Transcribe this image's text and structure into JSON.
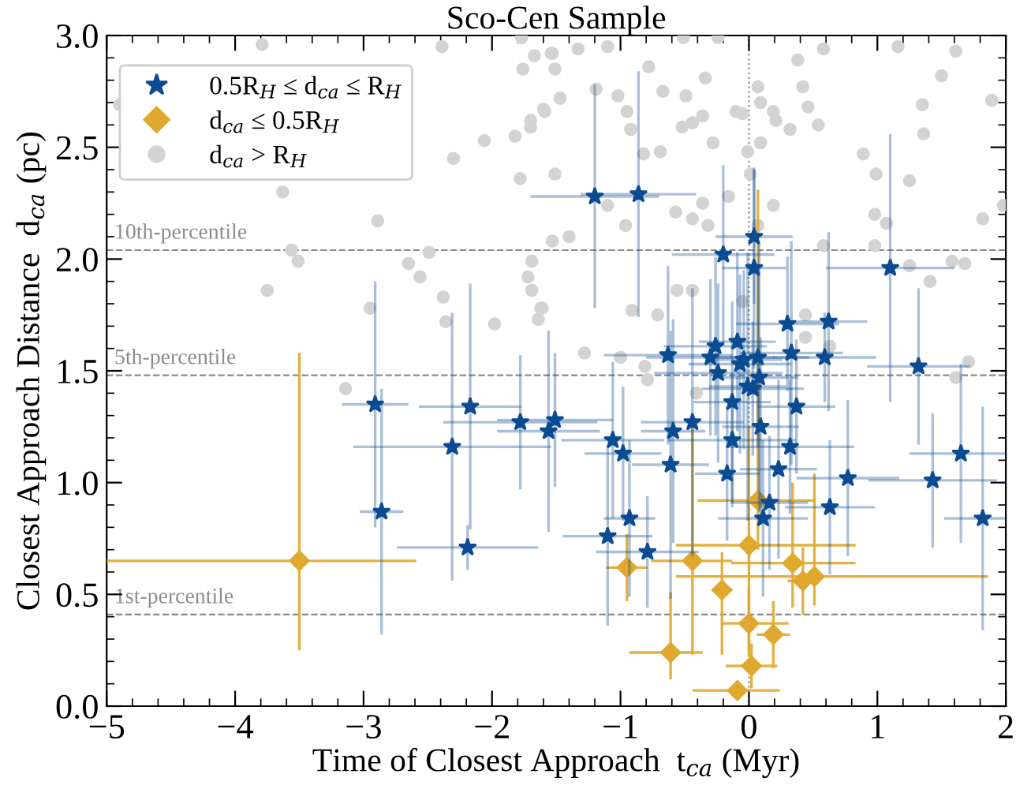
{
  "chart_data": {
    "type": "scatter",
    "title": "Sco-Cen Sample",
    "xlabel": "Time of Closest Approach  t$_{ca}$ (Myr)",
    "ylabel": "Closest Approach Distance  d$_{ca}$ (pc)",
    "xlim": [
      -5,
      2
    ],
    "xticks": [
      {
        "value": -5,
        "label": "−5"
      },
      {
        "value": -4,
        "label": "−4"
      },
      {
        "value": -3,
        "label": "−3"
      },
      {
        "value": -2,
        "label": "−2"
      },
      {
        "value": -1,
        "label": "−1"
      },
      0,
      1,
      2
    ],
    "ylim": [
      0,
      3
    ],
    "yticks": [
      {
        "value": 0,
        "label": "0.0"
      },
      0.5,
      {
        "value": 1,
        "label": "1.0"
      },
      1.5,
      {
        "value": 2,
        "label": "2.0"
      },
      2.5,
      {
        "value": 3,
        "label": "3.0"
      }
    ],
    "grid": false,
    "legend": "top left",
    "ref_lines": [
      {
        "axis": "y",
        "value": 2.04,
        "label": "10th-percentile",
        "color": "#8c8c8c",
        "line_style": "dashed"
      },
      {
        "axis": "y",
        "value": 1.48,
        "label": "5th-percentile",
        "color": "#8c8c8c",
        "line_style": "dashed"
      },
      {
        "axis": "y",
        "value": 0.41,
        "label": "1st-percentile",
        "color": "#8c8c8c",
        "line_style": "dashed"
      },
      {
        "axis": "x",
        "value": 0,
        "label": null,
        "color": "#8c8c8c",
        "line_style": "dotted"
      }
    ],
    "series": [
      {
        "name": "0.5R$_{H}$ ≤ d$_{ca}$ ≤ R$_{H}$",
        "color": "#0b4b91",
        "marker": "star",
        "x": [
          -2.91,
          -2.86,
          -2.17,
          -2.31,
          -2.19,
          -1.78,
          -1.56,
          -1.51,
          -1.06,
          -0.98,
          -0.93,
          -1.1,
          -0.79,
          -0.59,
          -0.61,
          -0.44,
          -0.13,
          -0.13,
          -0.17,
          -0.24,
          -0.07,
          -0.04,
          0.08,
          -0.01,
          0.03,
          0.09,
          0.37,
          0.32,
          0.23,
          0.16,
          0.11,
          0.77,
          0.63,
          1.32,
          1.43,
          1.65,
          1.82,
          -1.2,
          -0.86,
          0.04,
          -0.2,
          0.04,
          1.1,
          0.3,
          0.62,
          -0.26,
          -0.09,
          -0.63,
          -0.3,
          0.07,
          0.33,
          0.59
        ],
        "values": [
          1.35,
          0.87,
          1.34,
          1.16,
          0.71,
          1.27,
          1.23,
          1.28,
          1.19,
          1.13,
          0.84,
          0.76,
          0.69,
          1.23,
          1.08,
          1.27,
          1.36,
          1.19,
          1.04,
          1.49,
          1.53,
          1.55,
          1.47,
          1.43,
          1.42,
          1.25,
          1.34,
          1.16,
          1.06,
          0.91,
          0.84,
          1.02,
          0.89,
          1.52,
          1.01,
          1.13,
          0.84,
          2.28,
          2.29,
          2.1,
          2.02,
          1.96,
          1.96,
          1.71,
          1.72,
          1.61,
          1.63,
          1.57,
          1.56,
          1.56,
          1.58,
          1.56
        ],
        "xerrors": [
          0.26,
          0.17,
          0.4,
          0.77,
          0.55,
          0.6,
          0.4,
          0.45,
          0.4,
          0.3,
          0.2,
          0.35,
          0.4,
          0.25,
          0.3,
          0.4,
          0.3,
          0.5,
          0.25,
          0.5,
          0.4,
          0.3,
          0.3,
          0.3,
          0.4,
          0.3,
          0.3,
          0.5,
          0.3,
          0.3,
          0.35,
          0.4,
          0.35,
          0.4,
          0.5,
          0.4,
          0.3,
          0.5,
          0.45,
          0.3,
          0.4,
          0.25,
          0.5,
          0.4,
          0.3,
          0.4,
          0.3,
          0.5,
          0.5,
          0.4,
          0.4,
          0.4
        ],
        "errors": [
          0.55,
          0.55,
          0.55,
          0.6,
          0.1,
          0.3,
          0.45,
          0.3,
          0.35,
          0.3,
          0.35,
          0.4,
          0.25,
          0.5,
          0.6,
          0.6,
          0.45,
          0.3,
          0.3,
          0.4,
          0.4,
          0.4,
          0.6,
          0.6,
          0.3,
          0.4,
          0.3,
          0.3,
          0.4,
          0.3,
          0.35,
          0.35,
          0.3,
          0.35,
          0.3,
          0.4,
          0.5,
          0.5,
          0.55,
          0.3,
          0.4,
          0.45,
          0.6,
          0.3,
          0.4,
          0.4,
          0.4,
          0.4,
          0.35,
          0.4,
          0.5,
          0.2
        ]
      },
      {
        "name": "d$_{ca}$ ≤ 0.5R$_{H}$",
        "color": "#e0a82e",
        "marker": "diamond",
        "x": [
          -3.5,
          -0.95,
          -0.44,
          -0.61,
          -0.21,
          0.0,
          0.07,
          0.0,
          0.19,
          0.02,
          -0.09,
          0.34,
          0.42,
          0.51
        ],
        "values": [
          0.65,
          0.62,
          0.65,
          0.24,
          0.52,
          0.72,
          0.92,
          0.37,
          0.32,
          0.18,
          0.07,
          0.64,
          0.56,
          0.58
        ],
        "xerrors": [
          [
            -5.0,
            -2.59
          ],
          [
            -1.11,
            -0.79
          ],
          [
            -0.76,
            -0.13
          ],
          [
            -0.93,
            -0.36
          ],
          [
            -0.29,
            -0.13
          ],
          [
            -0.57,
            0.83
          ],
          [
            -0.4,
            0.52
          ],
          [
            -0.21,
            0.31
          ],
          [
            0.06,
            0.32
          ],
          [
            -0.18,
            0.22
          ],
          [
            -0.44,
            0.24
          ],
          [
            -0.14,
            0.83
          ],
          [
            0.3,
            0.54
          ],
          [
            -0.57,
            1.86
          ]
        ],
        "errors": [
          [
            0.25,
            1.58
          ],
          [
            0.47,
            0.77
          ],
          [
            0.23,
            1.26
          ],
          [
            0.12,
            0.51
          ],
          [
            0.23,
            0.69
          ],
          [
            0.25,
            1.25
          ],
          [
            0.7,
            2.31
          ],
          [
            0.22,
            0.52
          ],
          [
            0.17,
            0.47
          ],
          [
            0.08,
            0.28
          ],
          [
            0.03,
            0.11
          ],
          [
            0.44,
            1.0
          ],
          [
            0.41,
            0.71
          ],
          [
            0.45,
            1.04
          ]
        ]
      },
      {
        "name": "d$_{ca}$ > R$_{H}$",
        "color": "#d3d3d3",
        "marker": "circle",
        "x": [
          -3.79,
          -2.39,
          -1.77,
          -1.67,
          -1.76,
          -1.51,
          -1.54,
          -1.47,
          -1.59,
          -1.7,
          -1.7,
          -2.06,
          -1.82,
          -2.3,
          -1.78,
          -1.51,
          -3.63,
          -2.89,
          -3.56,
          -3.51,
          -3.75,
          -2.65,
          -2.56,
          -2.49,
          -2.38,
          -2.95,
          -2.36,
          -1.98,
          -1.69,
          -1.72,
          -1.69,
          -1.61,
          -1.64,
          -1.53,
          -4.9,
          -3.14,
          -1.53,
          -1.33,
          -1.1,
          -1.19,
          -1.47,
          -1.6,
          -0.95,
          -1.02,
          -0.92,
          -0.82,
          -0.69,
          -0.96,
          -1.1,
          -1.4,
          -1.62,
          -1.28,
          -0.91,
          -0.71,
          -0.56,
          -0.44,
          -0.78,
          -0.67,
          -0.49,
          -0.34,
          -0.24,
          -0.51,
          -0.36,
          -0.44,
          -0.28,
          -0.52,
          -0.05,
          -0.1,
          0.09,
          0.19,
          0.21,
          -0.01,
          0.01,
          0.09,
          0.07,
          0.42,
          0.32,
          0.54,
          0.46,
          0.58,
          0.38,
          0.89,
          0.99,
          1.25,
          1.16,
          1.35,
          1.36,
          1.5,
          1.61,
          1.89,
          1.98,
          1.82,
          0.98,
          1.07,
          0.58,
          0.98,
          1.25,
          1.41,
          1.58,
          1.68,
          0.44,
          0.44,
          0.63,
          1.71,
          -0.05,
          -0.16,
          0.07,
          0.19,
          -0.57,
          -0.44,
          -0.36,
          -0.32,
          1.61,
          -1.0,
          -0.81,
          -0.79,
          -0.41
        ],
        "values": [
          2.96,
          2.95,
          2.99,
          2.91,
          2.85,
          2.85,
          2.92,
          2.72,
          2.66,
          2.62,
          2.59,
          2.53,
          2.55,
          2.45,
          2.36,
          2.38,
          2.3,
          2.17,
          2.04,
          1.99,
          1.86,
          1.98,
          1.92,
          2.03,
          1.83,
          1.78,
          1.72,
          1.71,
          1.99,
          1.92,
          1.86,
          1.78,
          1.73,
          2.08,
          2.69,
          1.42,
          2.92,
          2.94,
          2.95,
          2.76,
          2.72,
          2.67,
          2.66,
          2.73,
          2.58,
          2.47,
          2.48,
          2.15,
          2.24,
          2.1,
          1.78,
          1.58,
          1.77,
          1.75,
          1.86,
          1.86,
          2.86,
          2.75,
          2.73,
          2.81,
          2.99,
          2.99,
          2.64,
          2.61,
          2.52,
          2.59,
          2.65,
          2.66,
          2.7,
          2.66,
          2.62,
          2.48,
          2.38,
          2.52,
          2.77,
          2.77,
          2.58,
          2.6,
          2.68,
          2.94,
          2.89,
          2.47,
          2.38,
          2.35,
          2.95,
          2.69,
          2.56,
          2.82,
          2.93,
          2.71,
          2.24,
          2.18,
          2.2,
          2.16,
          2.06,
          2.06,
          1.97,
          1.9,
          1.99,
          1.98,
          1.75,
          1.65,
          1.61,
          1.54,
          1.81,
          2.28,
          2.15,
          2.24,
          2.21,
          2.18,
          2.25,
          2.15,
          1.47,
          1.56,
          1.52,
          1.46,
          1.4
        ]
      }
    ]
  }
}
